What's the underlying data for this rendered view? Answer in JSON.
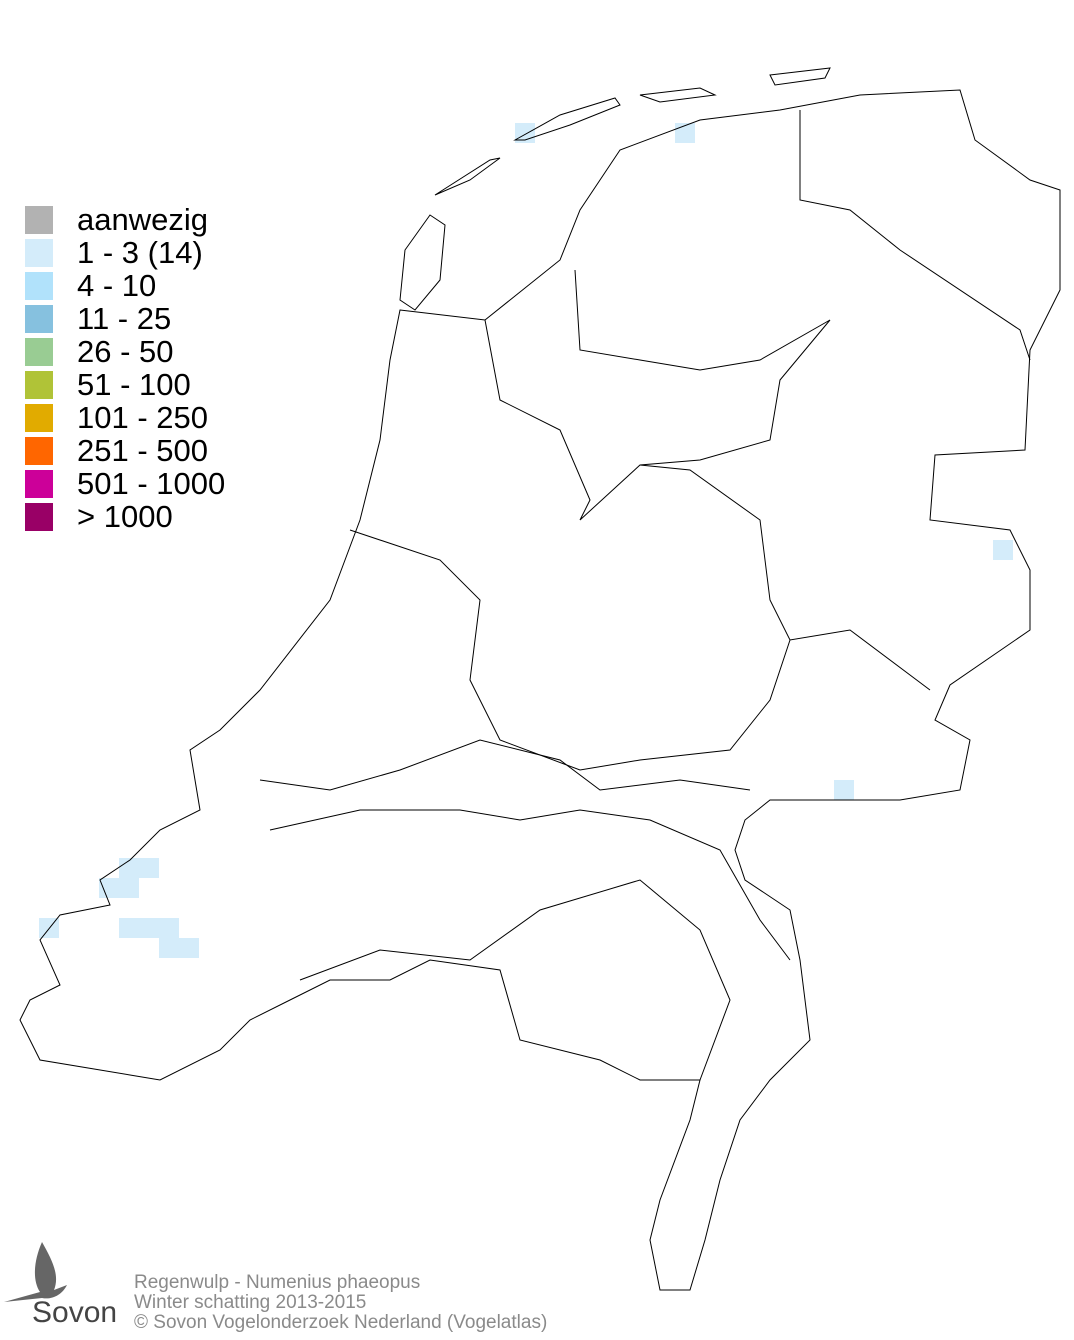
{
  "legend": [
    {
      "label": "aanwezig",
      "color": "#b2b2b2"
    },
    {
      "label": "1 - 3 (14)",
      "color": "#d4ecfa"
    },
    {
      "label": "4 - 10",
      "color": "#b1e2fb"
    },
    {
      "label": "11 - 25",
      "color": "#86c1df"
    },
    {
      "label": "26 - 50",
      "color": "#99cc93"
    },
    {
      "label": "51 - 100",
      "color": "#b0c337"
    },
    {
      "label": "101 - 250",
      "color": "#e1ab00"
    },
    {
      "label": "251 - 500",
      "color": "#ff6600"
    },
    {
      "label": "501 - 1000",
      "color": "#cc0099"
    },
    {
      "label": "> 1000",
      "color": "#990066"
    }
  ],
  "footer": {
    "species": "Regenwulp - Numenius phaeopus",
    "period": "Winter schatting 2013-2015",
    "copyright": "© Sovon Vogelonderzoek Nederland (Vogelatlas)"
  },
  "logo": {
    "text": "Sovon"
  },
  "map": {
    "occupied_class": "1 - 3 (14)",
    "occupied_cell_count": 14
  }
}
